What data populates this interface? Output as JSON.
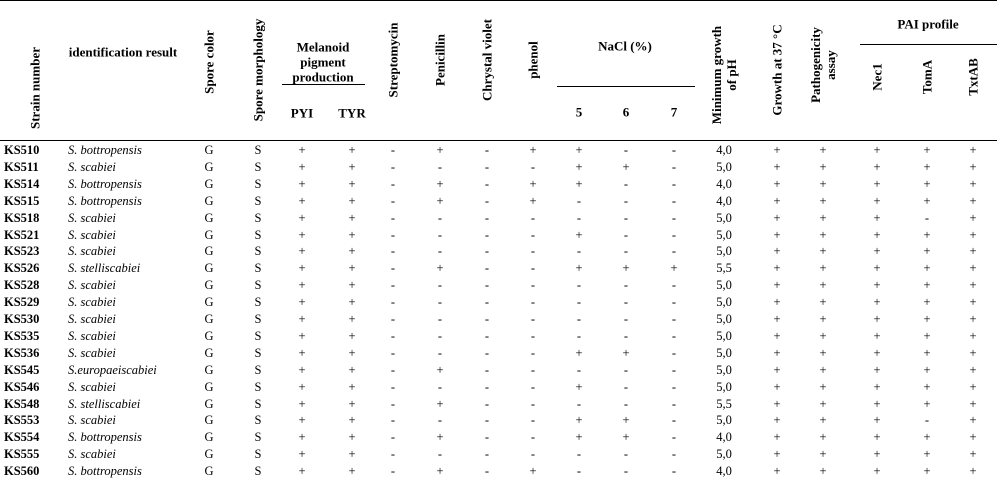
{
  "table": {
    "columns": [
      "Strain number",
      "identification result",
      "Spore color",
      "Spore morphology",
      "PYI",
      "TYR",
      "Streptomycin",
      "Penicillin",
      "Chrystal violet",
      "phenol",
      "5",
      "6",
      "7",
      "Minimum growth of pH",
      "Growth at 37 °C",
      "Pathogenicity assay",
      "Nec1",
      "TomA",
      "TxtAB"
    ],
    "groups": [
      "Melanoid pigment production",
      "NaCl (%)",
      "PAI profile"
    ],
    "rows": [
      [
        "KS510",
        "S. bottropensis",
        "G",
        "S",
        "+",
        "+",
        "-",
        "+",
        "-",
        "+",
        "+",
        "-",
        "-",
        "4,0",
        "+",
        "+",
        "+",
        "+",
        "+"
      ],
      [
        "KS511",
        "S. scabiei",
        "G",
        "S",
        "+",
        "+",
        "-",
        "-",
        "-",
        "-",
        "+",
        "+",
        "-",
        "5,0",
        "+",
        "+",
        "+",
        "+",
        "+"
      ],
      [
        "KS514",
        "S. bottropensis",
        "G",
        "S",
        "+",
        "+",
        "-",
        "+",
        "-",
        "+",
        "+",
        "-",
        "-",
        "4,0",
        "+",
        "+",
        "+",
        "+",
        "+"
      ],
      [
        "KS515",
        "S. bottropensis",
        "G",
        "S",
        "+",
        "+",
        "-",
        "+",
        "-",
        "+",
        "-",
        "-",
        "-",
        "4,0",
        "+",
        "+",
        "+",
        "+",
        "+"
      ],
      [
        "KS518",
        "S. scabiei",
        "G",
        "S",
        "+",
        "+",
        "-",
        "-",
        "-",
        "-",
        "-",
        "-",
        "-",
        "5,0",
        "+",
        "+",
        "+",
        "-",
        "+"
      ],
      [
        "KS521",
        "S. scabiei",
        "G",
        "S",
        "+",
        "+",
        "-",
        "-",
        "-",
        "-",
        "+",
        "-",
        "-",
        "5,0",
        "+",
        "+",
        "+",
        "+",
        "+"
      ],
      [
        "KS523",
        "S. scabiei",
        "G",
        "S",
        "+",
        "+",
        "-",
        "-",
        "-",
        "-",
        "-",
        "-",
        "-",
        "5,0",
        "+",
        "+",
        "+",
        "+",
        "+"
      ],
      [
        "KS526",
        "S. stelliscabiei",
        "G",
        "S",
        "+",
        "+",
        "-",
        "+",
        "-",
        "-",
        "+",
        "+",
        "+",
        "5,5",
        "+",
        "+",
        "+",
        "+",
        "+"
      ],
      [
        "KS528",
        "S. scabiei",
        "G",
        "S",
        "+",
        "+",
        "-",
        "-",
        "-",
        "-",
        "-",
        "-",
        "-",
        "5,0",
        "+",
        "+",
        "+",
        "+",
        "+"
      ],
      [
        "KS529",
        "S. scabiei",
        "G",
        "S",
        "+",
        "+",
        "-",
        "-",
        "-",
        "-",
        "-",
        "-",
        "-",
        "5,0",
        "+",
        "+",
        "+",
        "+",
        "+"
      ],
      [
        "KS530",
        "S. scabiei",
        "G",
        "S",
        "+",
        "+",
        "-",
        "-",
        "-",
        "-",
        "-",
        "-",
        "-",
        "5,0",
        "+",
        "+",
        "+",
        "+",
        "+"
      ],
      [
        "KS535",
        "S. scabiei",
        "G",
        "S",
        "+",
        "+",
        "-",
        "-",
        "-",
        "-",
        "-",
        "-",
        "-",
        "5,0",
        "+",
        "+",
        "+",
        "+",
        "+"
      ],
      [
        "KS536",
        "S. scabiei",
        "G",
        "S",
        "+",
        "+",
        "-",
        "-",
        "-",
        "-",
        "+",
        "+",
        "-",
        "5,0",
        "+",
        "+",
        "+",
        "+",
        "+"
      ],
      [
        "KS545",
        "S.europaeiscabiei",
        "G",
        "S",
        "+",
        "+",
        "-",
        "+",
        "-",
        "-",
        "-",
        "-",
        "-",
        "5,0",
        "+",
        "+",
        "+",
        "+",
        "+"
      ],
      [
        "KS546",
        "S. scabiei",
        "G",
        "S",
        "+",
        "+",
        "-",
        "-",
        "-",
        "-",
        "+",
        "-",
        "-",
        "5,0",
        "+",
        "+",
        "+",
        "+",
        "+"
      ],
      [
        "KS548",
        "S. stelliscabiei",
        "G",
        "S",
        "+",
        "+",
        "-",
        "+",
        "-",
        "-",
        "-",
        "-",
        "-",
        "5,5",
        "+",
        "+",
        "+",
        "+",
        "+"
      ],
      [
        "KS553",
        "S. scabiei",
        "G",
        "S",
        "+",
        "+",
        "-",
        "-",
        "-",
        "-",
        "+",
        "+",
        "-",
        "5,0",
        "+",
        "+",
        "+",
        "-",
        "+"
      ],
      [
        "KS554",
        "S. bottropensis",
        "G",
        "S",
        "+",
        "+",
        "-",
        "+",
        "-",
        "-",
        "+",
        "+",
        "-",
        "4,0",
        "+",
        "+",
        "+",
        "+",
        "+"
      ],
      [
        "KS555",
        "S. scabiei",
        "G",
        "S",
        "+",
        "+",
        "-",
        "-",
        "-",
        "-",
        "-",
        "-",
        "-",
        "5,0",
        "+",
        "+",
        "+",
        "+",
        "+"
      ],
      [
        "KS560",
        "S. bottropensis",
        "G",
        "S",
        "+",
        "+",
        "-",
        "+",
        "-",
        "+",
        "-",
        "-",
        "-",
        "4,0",
        "+",
        "+",
        "+",
        "+",
        "+"
      ]
    ]
  }
}
